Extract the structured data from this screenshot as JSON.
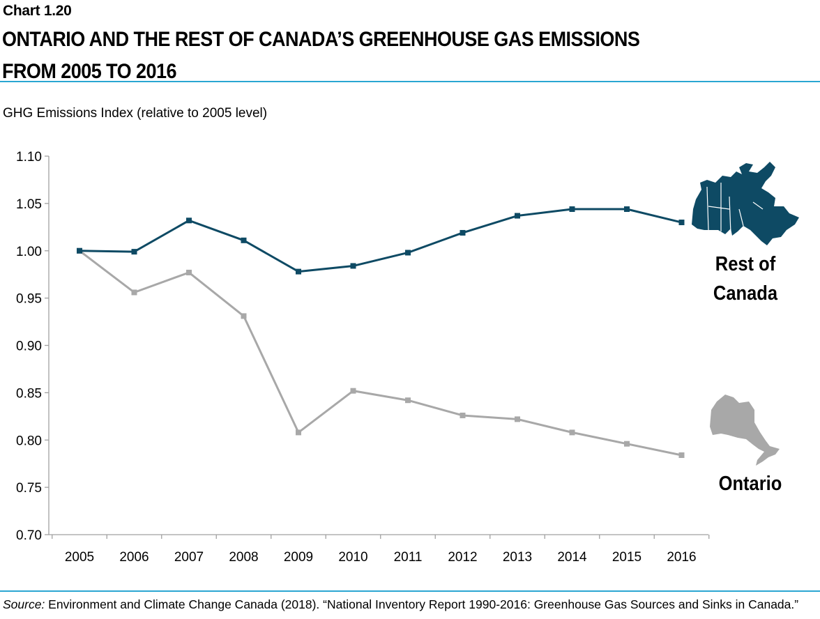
{
  "header": {
    "chart_number": "Chart 1.20",
    "title_line1": "ONTARIO AND THE REST OF CANADA’S GREENHOUSE GAS EMISSIONS",
    "title_line2": "FROM 2005 TO 2016"
  },
  "source": {
    "label": "Source:",
    "text": " Environment and Climate Change Canada (2018). “National Inventory Report 1990-2016: Greenhouse Gas Sources and Sinks in Canada.”"
  },
  "colors": {
    "rest_of_canada": "#0e4a64",
    "ontario": "#a8a8a8",
    "rule": "#2aa6d2",
    "axis": "#a0a0a0"
  },
  "chart_data": {
    "type": "line",
    "title": "ONTARIO AND THE REST OF CANADA’S GREENHOUSE GAS EMISSIONS FROM 2005 TO 2016",
    "xlabel": "",
    "ylabel": "GHG Emissions Index (relative to 2005 level)",
    "x": [
      "2005",
      "2006",
      "2007",
      "2008",
      "2009",
      "2010",
      "2011",
      "2012",
      "2013",
      "2014",
      "2015",
      "2016"
    ],
    "ylim": [
      0.7,
      1.1
    ],
    "yticks": [
      "0.70",
      "0.75",
      "0.80",
      "0.85",
      "0.90",
      "0.95",
      "1.00",
      "1.05",
      "1.10"
    ],
    "grid": false,
    "series": [
      {
        "name": "Rest of Canada",
        "label_lines": [
          "Rest of",
          "Canada"
        ],
        "icon": "canada-map-icon",
        "values": [
          1.0,
          0.999,
          1.032,
          1.011,
          0.978,
          0.984,
          0.998,
          1.019,
          1.037,
          1.044,
          1.044,
          1.03
        ]
      },
      {
        "name": "Ontario",
        "label_lines": [
          "Ontario"
        ],
        "icon": "ontario-map-icon",
        "values": [
          1.0,
          0.956,
          0.977,
          0.931,
          0.808,
          0.852,
          0.842,
          0.826,
          0.822,
          0.808,
          0.796,
          0.784
        ]
      }
    ]
  }
}
